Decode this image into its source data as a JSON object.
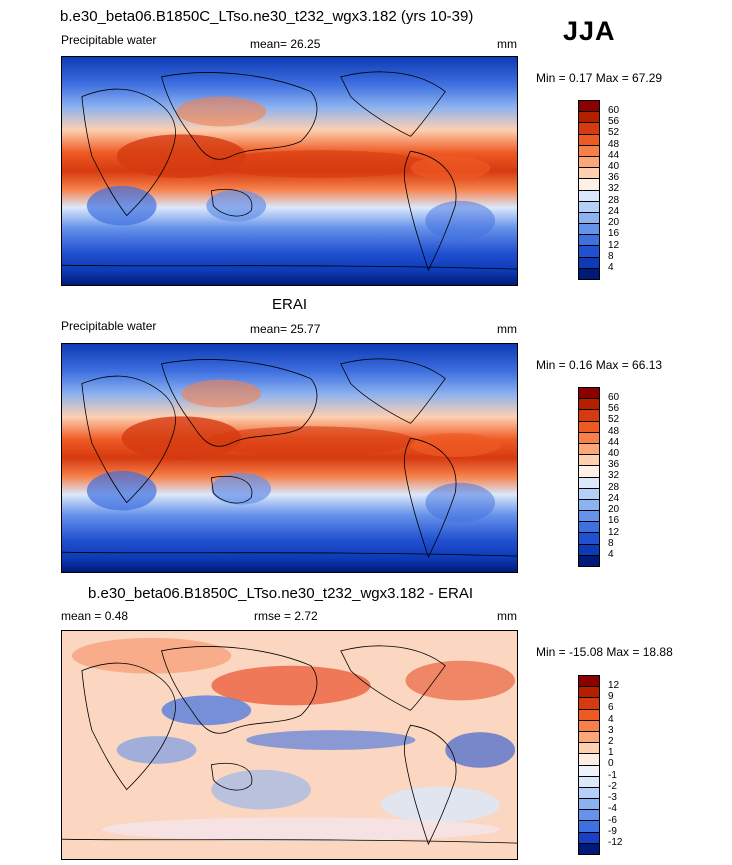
{
  "season": "JJA",
  "panels": [
    {
      "title": "b.e30_beta06.B1850C_LTso.ne30_t232_wgx3.182 (yrs 10-39)",
      "left_label": "Precipitable water",
      "center_label": "mean=  26.25",
      "units": "mm",
      "minmax": "Min =   0.17 Max =  67.29",
      "levels": [
        "60",
        "56",
        "52",
        "48",
        "44",
        "40",
        "36",
        "32",
        "28",
        "24",
        "20",
        "16",
        "12",
        "8",
        "4"
      ],
      "colors": [
        "#8b0000",
        "#b22000",
        "#d63a10",
        "#ee5a24",
        "#f7804a",
        "#fba779",
        "#fdd0b0",
        "#fff1e8",
        "#dbe8fb",
        "#b5cff6",
        "#8db2f0",
        "#6692ea",
        "#3f70e0",
        "#2150d0",
        "#0d3ab6",
        "#001a78"
      ],
      "map_type": "precipitable_water"
    },
    {
      "title": "ERAI",
      "left_label": "Precipitable water",
      "center_label": "mean=  25.77",
      "units": "mm",
      "minmax": "Min =   0.16 Max =  66.13",
      "levels": [
        "60",
        "56",
        "52",
        "48",
        "44",
        "40",
        "36",
        "32",
        "28",
        "24",
        "20",
        "16",
        "12",
        "8",
        "4"
      ],
      "colors": [
        "#8b0000",
        "#b22000",
        "#d63a10",
        "#ee5a24",
        "#f7804a",
        "#fba779",
        "#fdd0b0",
        "#fff1e8",
        "#dbe8fb",
        "#b5cff6",
        "#8db2f0",
        "#6692ea",
        "#3f70e0",
        "#2150d0",
        "#0d3ab6",
        "#001a78"
      ],
      "map_type": "precipitable_water"
    },
    {
      "title": "b.e30_beta06.B1850C_LTso.ne30_t232_wgx3.182 - ERAI",
      "left_label": "mean =   0.48",
      "center_label": "rmse =   2.72",
      "units": "mm",
      "minmax": "Min = -15.08 Max =  18.88",
      "levels": [
        "12",
        "9",
        "6",
        "4",
        "3",
        "2",
        "1",
        "0",
        "-1",
        "-2",
        "-3",
        "-4",
        "-6",
        "-9",
        "-12"
      ],
      "colors": [
        "#8b0000",
        "#b22000",
        "#d63a10",
        "#ee5a24",
        "#f7804a",
        "#fba779",
        "#fdd0b0",
        "#fdeee4",
        "#eef2fb",
        "#dbe8fb",
        "#b5cff6",
        "#8db2f0",
        "#6692ea",
        "#3f70e0",
        "#1c3fc8",
        "#001a78"
      ],
      "map_type": "difference"
    }
  ]
}
